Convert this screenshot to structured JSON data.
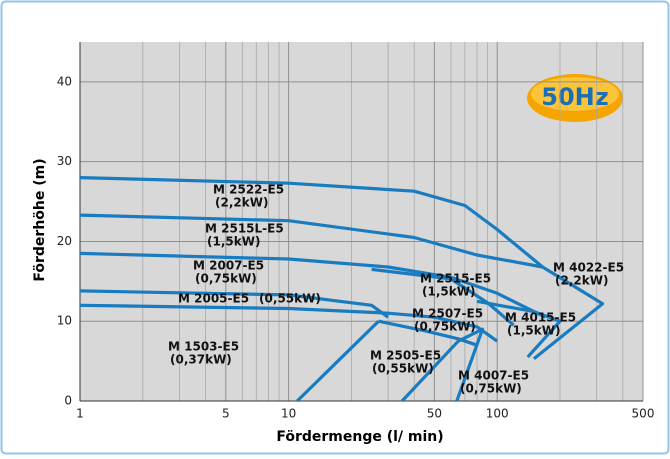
{
  "chart_data": {
    "type": "line",
    "badge": "50Hz",
    "xlabel": "Fördermenge (l/ min)",
    "ylabel": "Förderhöhe (m)",
    "xscale": "log",
    "xlim": [
      1,
      500
    ],
    "ylim": [
      0,
      45
    ],
    "xticks": [
      1,
      5,
      10,
      50,
      100,
      500
    ],
    "xgrid_minor": [
      2,
      3,
      4,
      6,
      7,
      8,
      9,
      20,
      30,
      40,
      60,
      70,
      80,
      90,
      200,
      300,
      400
    ],
    "yticks": [
      0,
      10,
      20,
      30,
      40
    ],
    "grid": true,
    "color": "#1a7cc0",
    "series": [
      {
        "name": "M 2522-E5",
        "power": "(2,2kW)",
        "x": [
          1,
          10,
          40,
          70,
          100,
          165
        ],
        "y": [
          28,
          27.3,
          26.3,
          24.5,
          21.5,
          16.8
        ]
      },
      {
        "name": "M 2515L-E5",
        "power": "(1,5kW)",
        "x": [
          1,
          10,
          40,
          80,
          165
        ],
        "y": [
          23.3,
          22.6,
          20.5,
          18.3,
          16.8
        ]
      },
      {
        "name": "M 4022-E5",
        "power": "(2,2kW)",
        "x": [
          165,
          320,
          150
        ],
        "y": [
          16.8,
          12.2,
          5.3
        ]
      },
      {
        "name": "M 2007-E5",
        "power": "(0,75kW)",
        "x": [
          1,
          10,
          30,
          60,
          100,
          170
        ],
        "y": [
          18.5,
          17.8,
          16.8,
          15.5,
          13.5,
          10.5
        ]
      },
      {
        "name": "M 2515-E5",
        "power": "(1,5kW)",
        "x": [
          25,
          60,
          90,
          120
        ],
        "y": [
          16.5,
          15.3,
          12.3,
          9.5
        ]
      },
      {
        "name": "M 4015-E5",
        "power": "(1,5kW)",
        "x": [
          80,
          150,
          200,
          140
        ],
        "y": [
          12.5,
          11.2,
          10,
          5.5
        ]
      },
      {
        "name": "M 2005-E5",
        "power": "(0,55kW)",
        "x": [
          1,
          10,
          25,
          30
        ],
        "y": [
          13.8,
          13.3,
          12,
          10.5
        ]
      },
      {
        "name": "M 2507-E5",
        "power": "(0,75kW)",
        "x": [
          1,
          10,
          30,
          50,
          80,
          100
        ],
        "y": [
          12,
          11.6,
          11,
          10.5,
          9.3,
          7.5
        ]
      },
      {
        "name": "M 2505-E5",
        "power": "(0,55kW)",
        "x": [
          27,
          45,
          65,
          80
        ],
        "y": [
          10,
          8.8,
          7.8,
          7
        ]
      },
      {
        "name": "M 1503-E5",
        "power": "(0,37kW)",
        "x": [
          11,
          27
        ],
        "y": [
          0,
          10
        ]
      },
      {
        "name": "M 4007-E5",
        "power": "(0,75kW)",
        "x": [
          35,
          65,
          85,
          64
        ],
        "y": [
          0,
          7.5,
          9,
          0
        ]
      }
    ]
  }
}
